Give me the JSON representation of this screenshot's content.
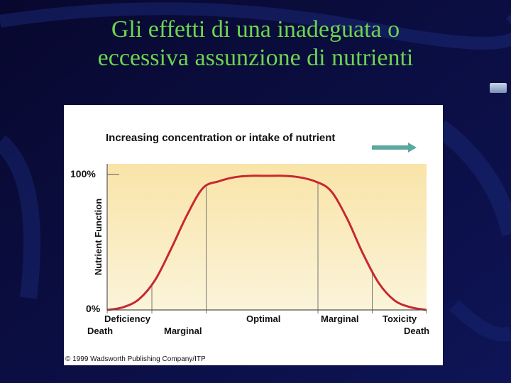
{
  "slide": {
    "title_line1": "Gli effetti di una inadeguata o",
    "title_line2": "eccessiva assunzione di nutrienti",
    "title_color": "#6cd44e",
    "background_color": "#0a0a3c"
  },
  "figure": {
    "copyright": "© 1999 Wadsworth Publishing Company/ITP"
  },
  "chart_data": {
    "type": "area",
    "title": "Increasing concentration or intake of nutrient",
    "ylabel": "Nutrient Function",
    "ylim": [
      0,
      100
    ],
    "yticks": [
      "100%",
      "0%"
    ],
    "x": [
      0,
      5,
      10,
      15,
      20,
      25,
      30,
      35,
      40,
      45,
      50,
      55,
      60,
      65,
      70,
      75,
      80,
      85,
      90,
      95,
      100
    ],
    "values": [
      0,
      2,
      8,
      22,
      45,
      70,
      90,
      95,
      98,
      99,
      99,
      99,
      98,
      95,
      88,
      68,
      42,
      20,
      7,
      2,
      0
    ],
    "zone_boundaries": [
      14,
      31,
      66,
      83
    ],
    "zones_top": [
      "Deficiency",
      "Optimal",
      "Marginal",
      "Toxicity"
    ],
    "zones_bottom": [
      "Death",
      "Marginal",
      "Death"
    ],
    "fill_gradient": [
      "#f9e4a8",
      "#fbf4da"
    ],
    "line_color": "#c8282f",
    "arrow_color": "#5aa8a0",
    "grid": false
  }
}
